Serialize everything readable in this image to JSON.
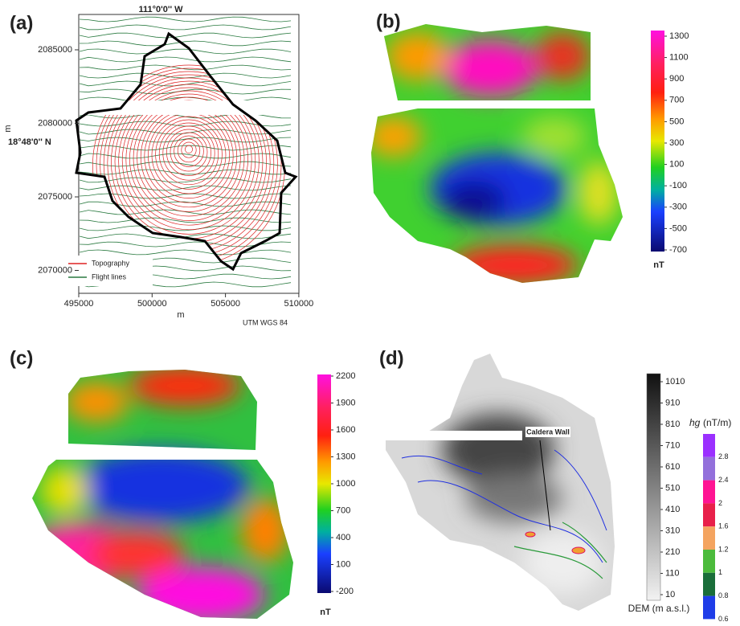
{
  "panels": [
    {
      "label": "(a)",
      "top_label": "111°0'0'' W",
      "left_label": "18°48'0'' N",
      "x_axis_title": "m",
      "y_axis_title": "m",
      "xticks": [
        495000,
        500000,
        505000,
        510000
      ],
      "yticks": [
        2085000,
        2080000,
        2075000,
        2070000
      ],
      "legend": [
        "Topography",
        "Flight lines"
      ],
      "footnote": "UTM WGS 84"
    },
    {
      "label": "(b)",
      "colorbar_ticks": [
        1300,
        1100,
        900,
        700,
        500,
        300,
        100,
        -100,
        -300,
        -500,
        -700
      ],
      "colorbar_unit": "nT"
    },
    {
      "label": "(c)",
      "colorbar_ticks": [
        2200,
        1900,
        1600,
        1300,
        1000,
        700,
        400,
        100,
        -200
      ],
      "colorbar_unit": "nT"
    },
    {
      "label": "(d)",
      "annotation": "Caldera Wall",
      "dem_ticks": [
        1010,
        910,
        810,
        710,
        610,
        510,
        410,
        310,
        210,
        110,
        10
      ],
      "dem_title": "DEM (m a.s.l.)",
      "hg_symbol": "hg",
      "hg_unit": "(nT/m)",
      "hg_ticks": [
        2.8,
        2.4,
        2,
        1.6,
        1.2,
        1,
        0.8,
        0.6
      ]
    }
  ]
}
